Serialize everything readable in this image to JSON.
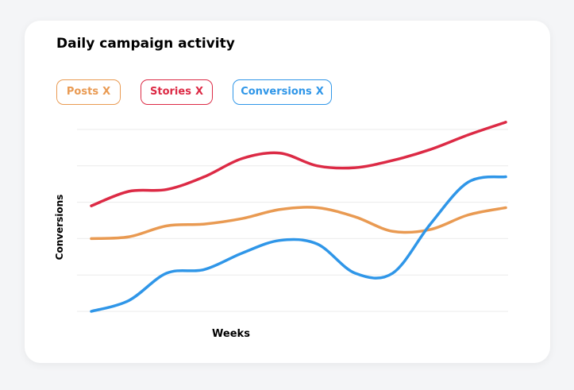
{
  "title": "Daily campaign activity",
  "legend": [
    {
      "label": "Posts",
      "close": "X",
      "color": "#e99a52"
    },
    {
      "label": "Stories",
      "close": "X",
      "color": "#dc2a45"
    },
    {
      "label": "Conversions",
      "close": "X",
      "color": "#2f96e8"
    }
  ],
  "chart_data": {
    "type": "line",
    "title": "Daily campaign activity",
    "xlabel": "Weeks",
    "ylabel": "Conversions",
    "ylim": [
      0,
      5
    ],
    "xlim": [
      0,
      11
    ],
    "grid": true,
    "legend_position": "top",
    "series": [
      {
        "name": "Posts",
        "color": "#e99a52",
        "x": [
          0,
          1,
          2,
          3,
          4,
          5,
          6,
          7,
          8,
          9,
          10,
          11
        ],
        "y": [
          2.0,
          2.05,
          2.35,
          2.4,
          2.55,
          2.8,
          2.85,
          2.6,
          2.2,
          2.25,
          2.65,
          2.85
        ]
      },
      {
        "name": "Stories",
        "color": "#dc2a45",
        "x": [
          0,
          1,
          2,
          3,
          4,
          5,
          6,
          7,
          8,
          9,
          10,
          11
        ],
        "y": [
          2.9,
          3.3,
          3.35,
          3.7,
          4.2,
          4.35,
          4.0,
          3.95,
          4.15,
          4.45,
          4.85,
          5.2
        ]
      },
      {
        "name": "Conversions",
        "color": "#2f96e8",
        "x": [
          0,
          1,
          2,
          3,
          4,
          5,
          6,
          7,
          8,
          9,
          10,
          11
        ],
        "y": [
          0.0,
          0.3,
          1.05,
          1.15,
          1.6,
          1.95,
          1.85,
          1.05,
          1.05,
          2.4,
          3.55,
          3.7
        ]
      }
    ]
  }
}
